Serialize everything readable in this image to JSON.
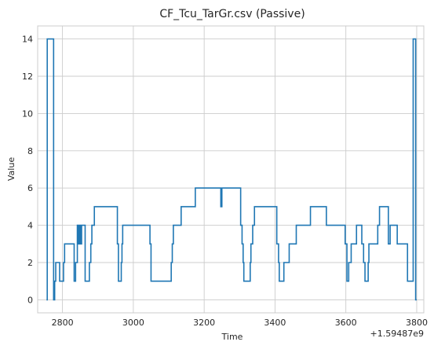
{
  "chart_data": {
    "type": "line",
    "title": "CF_Tcu_TarGr.csv (Passive)",
    "xlabel": "Time",
    "ylabel": "Value",
    "offset_text": "+1.59487e9",
    "xlim": [
      2730,
      3820
    ],
    "ylim": [
      -0.7,
      14.7
    ],
    "xticks": [
      2800,
      3000,
      3200,
      3400,
      3600,
      3800
    ],
    "yticks": [
      0,
      2,
      4,
      6,
      8,
      10,
      12,
      14
    ],
    "grid": true,
    "line_color": "#1f77b4",
    "drawstyle": "steps-post",
    "series": [
      {
        "x": [
          2755,
          2757,
          2772,
          2775,
          2778,
          2781,
          2792,
          2803,
          2806,
          2833,
          2837,
          2842,
          2845,
          2848,
          2851,
          2854,
          2857,
          2864,
          2876,
          2880,
          2883,
          2890,
          2955,
          2958,
          2964,
          2966,
          2968,
          2970,
          3000,
          3047,
          3050,
          3107,
          3110,
          3113,
          3122,
          3125,
          3135,
          3165,
          3175,
          3200,
          3247,
          3250,
          3257,
          3303,
          3307,
          3310,
          3312,
          3315,
          3330,
          3332,
          3337,
          3342,
          3350,
          3405,
          3410,
          3412,
          3416,
          3421,
          3425,
          3440,
          3460,
          3500,
          3545,
          3595,
          3598,
          3603,
          3608,
          3615,
          3630,
          3645,
          3650,
          3654,
          3657,
          3663,
          3665,
          3669,
          3690,
          3695,
          3700,
          3720,
          3725,
          3745,
          3755,
          3774,
          3790,
          3797,
          3800
        ],
        "y": [
          0,
          14,
          14,
          0,
          1,
          2,
          1,
          2,
          3,
          1,
          2,
          4,
          3,
          4,
          3,
          4,
          4,
          1,
          2,
          3,
          4,
          5,
          3,
          1,
          1,
          2,
          3,
          4,
          4,
          3,
          1,
          2,
          3,
          4,
          4,
          4,
          5,
          5,
          6,
          6,
          5,
          6,
          6,
          4,
          3,
          2,
          1,
          1,
          2,
          3,
          4,
          5,
          5,
          3,
          2,
          1,
          1,
          1,
          2,
          3,
          4,
          5,
          4,
          4,
          3,
          1,
          2,
          3,
          4,
          3,
          2,
          1,
          1,
          2,
          3,
          3,
          4,
          5,
          5,
          3,
          4,
          3,
          3,
          1,
          14,
          0,
          0
        ]
      }
    ]
  }
}
